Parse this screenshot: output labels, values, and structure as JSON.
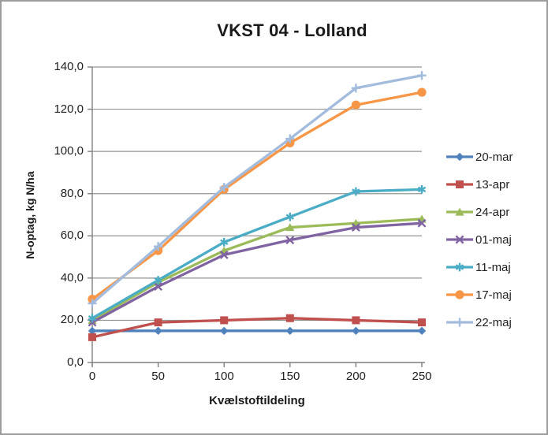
{
  "window": {
    "title": "VKST 04 - Lolland"
  },
  "colors": {
    "background": "#ffffff",
    "frame_border": "#9c9c9c",
    "gridline": "#949494",
    "axis": "#7f7f7f",
    "text": "#1f1f1f"
  },
  "chart_data": {
    "type": "line",
    "title": "VKST 04 - Lolland",
    "xlabel": "Kvælstoftildeling",
    "ylabel": "N-optag, kg N/ha",
    "x": [
      0,
      50,
      100,
      150,
      200,
      250
    ],
    "x_tick_labels": [
      "0",
      "50",
      "100",
      "150",
      "200",
      "250"
    ],
    "xlim": [
      0,
      250
    ],
    "y_ticks": [
      0,
      20,
      40,
      60,
      80,
      100,
      120,
      140
    ],
    "y_tick_labels": [
      "0,0",
      "20,0",
      "40,0",
      "60,0",
      "80,0",
      "100,0",
      "120,0",
      "140,0"
    ],
    "ylim": [
      0,
      140
    ],
    "grid": "horizontal",
    "legend_position": "right",
    "series": [
      {
        "name": "20-mar",
        "color": "#4F81BD",
        "marker": "diamond",
        "values": [
          15,
          15,
          15,
          15,
          15,
          15
        ]
      },
      {
        "name": "13-apr",
        "color": "#C0504D",
        "marker": "square",
        "values": [
          12,
          19,
          20,
          21,
          20,
          19
        ]
      },
      {
        "name": "24-apr",
        "color": "#9BBB59",
        "marker": "triangle",
        "values": [
          20,
          38,
          53,
          64,
          66,
          68
        ]
      },
      {
        "name": "01-maj",
        "color": "#8064A2",
        "marker": "x",
        "values": [
          19,
          36,
          51,
          58,
          64,
          66
        ]
      },
      {
        "name": "11-maj",
        "color": "#4BACC6",
        "marker": "asterisk",
        "values": [
          21,
          39,
          57,
          69,
          81,
          82
        ]
      },
      {
        "name": "17-maj",
        "color": "#F79646",
        "marker": "circle",
        "values": [
          30,
          53,
          82,
          104,
          122,
          128
        ]
      },
      {
        "name": "22-maj",
        "color": "#A3BCDE",
        "marker": "plus",
        "values": [
          28,
          55,
          83,
          106,
          130,
          136
        ]
      }
    ]
  }
}
